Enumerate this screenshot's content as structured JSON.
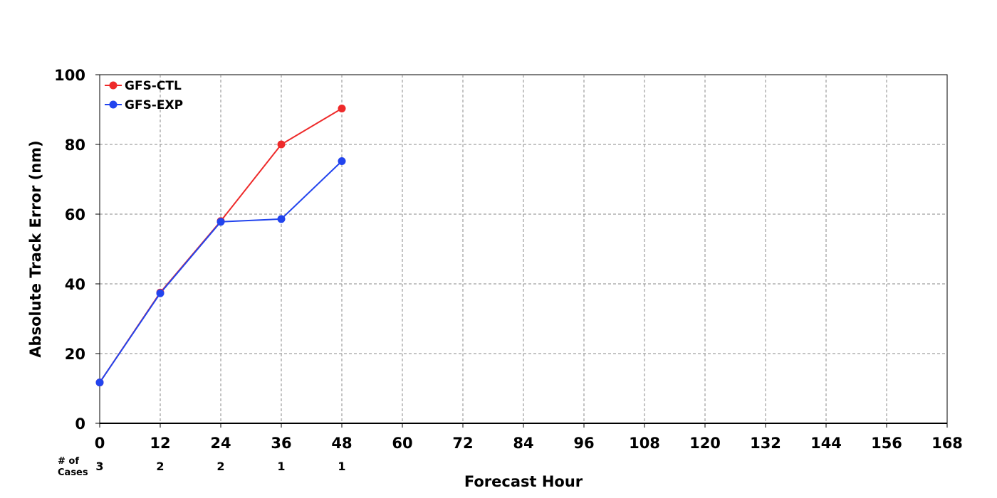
{
  "chart_data": {
    "type": "line",
    "title": "",
    "xlabel": "Forecast Hour",
    "ylabel": "Absolute Track Error (nm)",
    "xlim": [
      0,
      168
    ],
    "ylim": [
      0,
      100
    ],
    "x_ticks": [
      "0",
      "12",
      "24",
      "36",
      "48",
      "60",
      "72",
      "84",
      "96",
      "108",
      "120",
      "132",
      "144",
      "156",
      "168"
    ],
    "y_ticks": [
      "0",
      "20",
      "40",
      "60",
      "80",
      "100"
    ],
    "grid": true,
    "legend_position": "top-left",
    "series": [
      {
        "name": "GFS-CTL",
        "color": "#ee2a2a",
        "x": [
          0,
          12,
          24,
          36,
          48
        ],
        "y": [
          11.7,
          37.5,
          58.0,
          80.0,
          90.3
        ]
      },
      {
        "name": "GFS-EXP",
        "color": "#2244ee",
        "x": [
          0,
          12,
          24,
          36,
          48
        ],
        "y": [
          11.7,
          37.3,
          57.8,
          58.6,
          75.2
        ]
      }
    ],
    "cases": {
      "label_line1": "# of",
      "label_line2": "Cases",
      "x": [
        0,
        12,
        24,
        36,
        48
      ],
      "values": [
        "3",
        "2",
        "2",
        "1",
        "1"
      ]
    }
  }
}
